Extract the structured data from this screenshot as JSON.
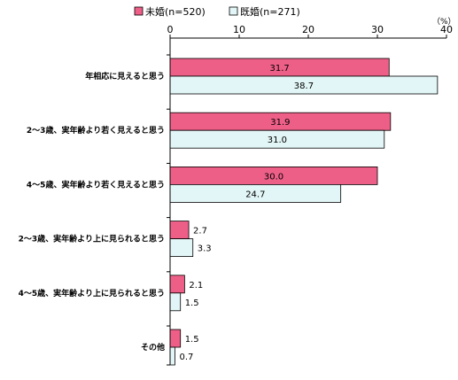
{
  "chart_data": {
    "type": "bar",
    "orientation": "horizontal",
    "unit": "（%）",
    "xlim": [
      0,
      40
    ],
    "x_ticks": [
      "0",
      "10",
      "20",
      "30",
      "40"
    ],
    "grid": false,
    "legend_placement": "top-center",
    "categories": [
      "年相応に見えると思う",
      "2～3歳、実年齢より若く見えると思う",
      "4～5歳、実年齢より若く見えると思う",
      "2～3歳、実年齢より上に見られると思う",
      "4～5歳、実年齢より上に見られると思う",
      "その他"
    ],
    "series": [
      {
        "name": "未婚(n=520)",
        "color": "#ee5f88",
        "values": [
          31.7,
          31.9,
          30.0,
          2.7,
          2.1,
          1.5
        ],
        "labels": [
          "31.7",
          "31.9",
          "30.0",
          "2.7",
          "2.1",
          "1.5"
        ]
      },
      {
        "name": "既婚(n=271)",
        "color": "#e3f6f7",
        "values": [
          38.7,
          31.0,
          24.7,
          3.3,
          1.5,
          0.7
        ],
        "labels": [
          "38.7",
          "31.0",
          "24.7",
          "3.3",
          "1.5",
          "0.7"
        ]
      }
    ]
  }
}
